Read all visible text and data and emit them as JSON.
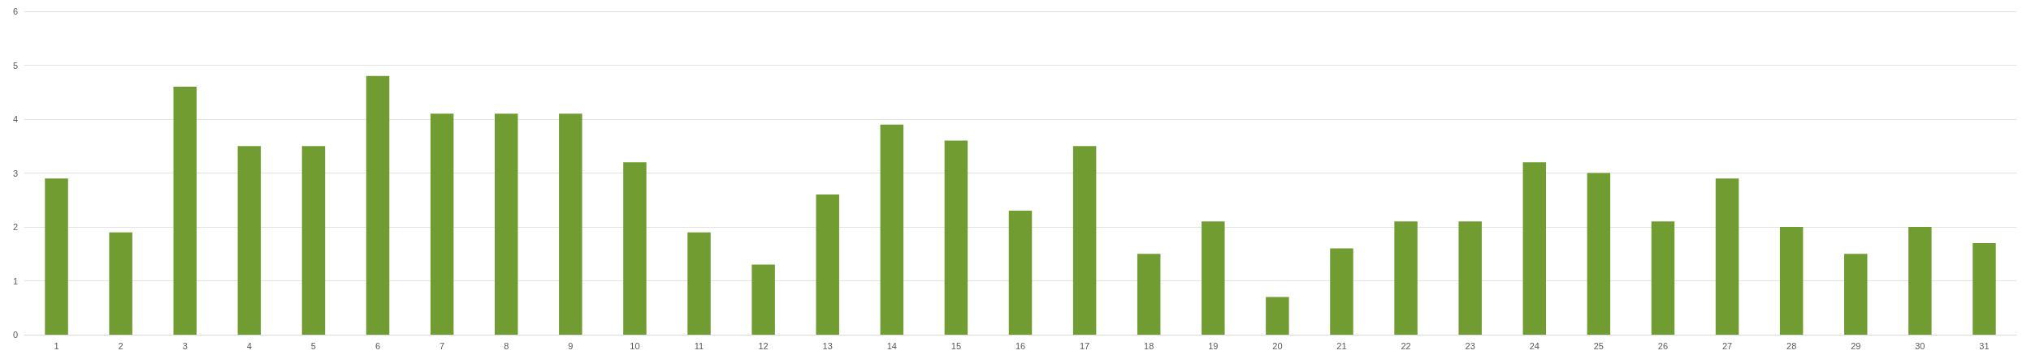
{
  "chart_data": {
    "type": "bar",
    "categories": [
      "1",
      "2",
      "3",
      "4",
      "5",
      "6",
      "7",
      "8",
      "9",
      "10",
      "11",
      "12",
      "13",
      "14",
      "15",
      "16",
      "17",
      "18",
      "19",
      "20",
      "21",
      "22",
      "23",
      "24",
      "25",
      "26",
      "27",
      "28",
      "29",
      "30",
      "31"
    ],
    "values": [
      2.9,
      1.9,
      4.6,
      3.5,
      3.5,
      4.8,
      4.1,
      4.1,
      4.1,
      3.2,
      1.9,
      1.3,
      2.6,
      3.9,
      3.6,
      2.3,
      3.5,
      1.5,
      2.1,
      0.7,
      1.6,
      2.1,
      2.1,
      3.2,
      3.0,
      2.1,
      2.9,
      2.0,
      1.5,
      2.0,
      1.7
    ],
    "color": "#719c31",
    "ylim": [
      0,
      6
    ],
    "yticks": [
      0,
      1,
      2,
      3,
      4,
      5,
      6
    ],
    "grid": "y"
  }
}
